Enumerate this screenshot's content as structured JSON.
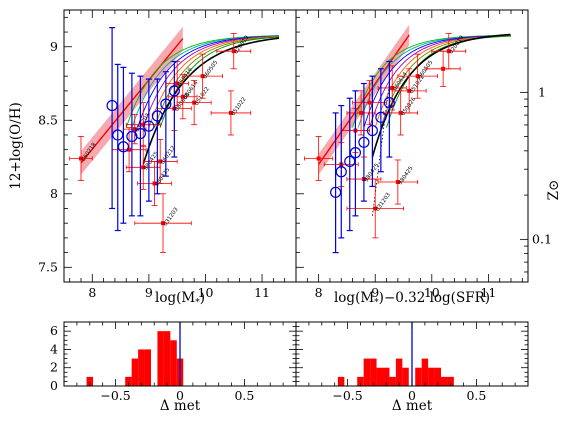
{
  "figure": {
    "colors": {
      "red": "#ff0000",
      "blue": "#0000e0",
      "band": "#f49aa0",
      "black": "#000000"
    }
  },
  "chart_data": [
    {
      "id": "metallicity-vs-mass",
      "type": "scatter",
      "xlabel": "log(M",
      "xlabel_sub": "*",
      "xlabel_tail": ")",
      "ylabel": "12+log(O/H)",
      "xlim": [
        7.5,
        11.6
      ],
      "ylim": [
        7.4,
        9.25
      ],
      "xticks": [
        "8",
        "9",
        "10",
        "11"
      ],
      "yticks": [
        "7.5",
        "8",
        "8.5",
        "9"
      ],
      "series": [
        {
          "role": "grb-hosts",
          "color": "#ff0000",
          "points": [
            {
              "x": 7.8,
              "y": 8.24,
              "xerr": 0.2,
              "yerr": 0.15,
              "label": "060218"
            },
            {
              "x": 8.75,
              "y": 8.44,
              "xerr": 0.2,
              "yerr": 0.1,
              "label": "031203"
            },
            {
              "x": 8.65,
              "y": 8.3,
              "xerr": 0.3,
              "yerr": 0.15,
              "label": ""
            },
            {
              "x": 8.9,
              "y": 8.47,
              "xerr": 0.3,
              "yerr": 0.15,
              "label": ""
            },
            {
              "x": 8.9,
              "y": 8.18,
              "xerr": 0.3,
              "yerr": 0.15,
              "label": "980425"
            },
            {
              "x": 9.2,
              "y": 8.22,
              "xerr": 0.3,
              "yerr": 0.15,
              "label": "060212"
            },
            {
              "x": 9.1,
              "y": 8.07,
              "xerr": 0.3,
              "yerr": 0.15,
              "label": "980425"
            },
            {
              "x": 9.25,
              "y": 7.8,
              "xerr": 0.5,
              "yerr": 0.2,
              "label": "031203"
            },
            {
              "x": 9.45,
              "y": 8.58,
              "xerr": 0.3,
              "yerr": 0.15,
              "label": "080608"
            },
            {
              "x": 9.5,
              "y": 8.75,
              "xerr": 0.2,
              "yerr": 0.15,
              "label": "050416"
            },
            {
              "x": 9.8,
              "y": 8.62,
              "xerr": 0.3,
              "yerr": 0.15,
              "label": "051022"
            },
            {
              "x": 9.95,
              "y": 8.8,
              "xerr": 0.35,
              "yerr": 0.15,
              "label": "060505"
            },
            {
              "x": 10.45,
              "y": 8.55,
              "xerr": 0.35,
              "yerr": 0.15,
              "label": "051022"
            },
            {
              "x": 10.5,
              "y": 8.97,
              "xerr": 0.3,
              "yerr": 0.12,
              "label": "020819"
            },
            {
              "x": 9.6,
              "y": 8.66,
              "xerr": 0.25,
              "yerr": 0.15,
              "label": "060614"
            }
          ]
        },
        {
          "role": "binned-medians",
          "color": "#0000e0",
          "points": [
            {
              "x": 8.35,
              "y": 8.6,
              "ylo": 7.9,
              "yhi": 9.13
            },
            {
              "x": 8.45,
              "y": 8.4,
              "ylo": 7.75,
              "yhi": 8.88
            },
            {
              "x": 8.55,
              "y": 8.32,
              "ylo": 7.8,
              "yhi": 8.86
            },
            {
              "x": 8.7,
              "y": 8.39,
              "ylo": 7.85,
              "yhi": 8.82
            },
            {
              "x": 8.85,
              "y": 8.41,
              "ylo": 7.85,
              "yhi": 8.8
            },
            {
              "x": 9.0,
              "y": 8.46,
              "ylo": 7.95,
              "yhi": 8.78
            },
            {
              "x": 9.15,
              "y": 8.53,
              "ylo": 8.0,
              "yhi": 8.78
            },
            {
              "x": 9.3,
              "y": 8.61,
              "ylo": 8.12,
              "yhi": 8.83
            },
            {
              "x": 9.45,
              "y": 8.7,
              "ylo": 8.25,
              "yhi": 8.9
            }
          ]
        }
      ]
    },
    {
      "id": "metallicity-vs-mass-sfr",
      "type": "scatter",
      "xlabel": "log(M",
      "xlabel_sub": "*",
      "xlabel_tail": ")−0.32 log(SFR)",
      "ylabel_right": "Z⊙",
      "xlim": [
        7.6,
        11.7
      ],
      "ylim": [
        7.4,
        9.25
      ],
      "xticks": [
        "8",
        "9",
        "10",
        "11"
      ],
      "right_ticks": [
        "1",
        "0.1"
      ],
      "series": [
        {
          "role": "grb-hosts",
          "color": "#ff0000",
          "points": [
            {
              "x": 8.0,
              "y": 8.24,
              "xerr": 0.25,
              "yerr": 0.15,
              "label": ""
            },
            {
              "x": 8.4,
              "y": 8.2,
              "xerr": 0.3,
              "yerr": 0.15,
              "label": ""
            },
            {
              "x": 8.65,
              "y": 8.43,
              "xerr": 0.25,
              "yerr": 0.15,
              "label": ""
            },
            {
              "x": 8.75,
              "y": 8.55,
              "xerr": 0.25,
              "yerr": 0.15,
              "label": ""
            },
            {
              "x": 8.9,
              "y": 8.62,
              "xerr": 0.3,
              "yerr": 0.15,
              "label": ""
            },
            {
              "x": 8.8,
              "y": 8.1,
              "xerr": 0.3,
              "yerr": 0.15,
              "label": "980425"
            },
            {
              "x": 9.0,
              "y": 7.9,
              "xerr": 0.5,
              "yerr": 0.2,
              "label": "031203"
            },
            {
              "x": 9.3,
              "y": 8.72,
              "xerr": 0.25,
              "yerr": 0.15,
              "label": "060614"
            },
            {
              "x": 9.45,
              "y": 8.55,
              "xerr": 0.3,
              "yerr": 0.15,
              "label": "050826"
            },
            {
              "x": 9.6,
              "y": 8.7,
              "xerr": 0.3,
              "yerr": 0.15,
              "label": "051022"
            },
            {
              "x": 9.75,
              "y": 8.8,
              "xerr": 0.35,
              "yerr": 0.15,
              "label": "060505"
            },
            {
              "x": 9.4,
              "y": 8.08,
              "xerr": 0.35,
              "yerr": 0.15,
              "label": "980425"
            },
            {
              "x": 10.3,
              "y": 8.97,
              "xerr": 0.3,
              "yerr": 0.12,
              "label": "020819"
            },
            {
              "x": 10.2,
              "y": 8.85,
              "xerr": 0.3,
              "yerr": 0.12,
              "label": ""
            }
          ]
        },
        {
          "role": "binned-medians",
          "color": "#0000e0",
          "points": [
            {
              "x": 8.3,
              "y": 8.01,
              "ylo": 7.6,
              "yhi": 8.55
            },
            {
              "x": 8.4,
              "y": 8.15,
              "ylo": 7.7,
              "yhi": 8.6
            },
            {
              "x": 8.55,
              "y": 8.22,
              "ylo": 7.75,
              "yhi": 8.65
            },
            {
              "x": 8.65,
              "y": 8.28,
              "ylo": 7.85,
              "yhi": 8.7
            },
            {
              "x": 8.8,
              "y": 8.35,
              "ylo": 7.95,
              "yhi": 8.75
            },
            {
              "x": 8.95,
              "y": 8.43,
              "ylo": 8.05,
              "yhi": 8.8
            },
            {
              "x": 9.1,
              "y": 8.52,
              "ylo": 8.15,
              "yhi": 8.85
            },
            {
              "x": 9.25,
              "y": 8.62,
              "ylo": 8.25,
              "yhi": 8.9
            }
          ]
        }
      ]
    },
    {
      "id": "delta-met-hist-left",
      "type": "bar",
      "xlabel": "Δ met",
      "xlim": [
        -0.9,
        0.9
      ],
      "ylim": [
        0,
        7
      ],
      "xticks": [
        "−0.5",
        "0",
        "0.5"
      ],
      "yticks": [
        "0",
        "2",
        "4",
        "6"
      ],
      "bin_width": 0.05,
      "bins": [
        {
          "x": -0.7,
          "count": 1
        },
        {
          "x": -0.4,
          "count": 1
        },
        {
          "x": -0.35,
          "count": 3
        },
        {
          "x": -0.3,
          "count": 4
        },
        {
          "x": -0.25,
          "count": 4
        },
        {
          "x": -0.15,
          "count": 6
        },
        {
          "x": -0.1,
          "count": 6
        },
        {
          "x": -0.05,
          "count": 5
        },
        {
          "x": 0.0,
          "count": 3
        }
      ],
      "marker_x": 0
    },
    {
      "id": "delta-met-hist-right",
      "type": "bar",
      "xlabel": "Δ met",
      "xlim": [
        -0.9,
        0.9
      ],
      "ylim": [
        0,
        7
      ],
      "xticks": [
        "−0.5",
        "0",
        "0.5"
      ],
      "bin_width": 0.05,
      "bins": [
        {
          "x": -0.55,
          "count": 1
        },
        {
          "x": -0.4,
          "count": 1
        },
        {
          "x": -0.35,
          "count": 3
        },
        {
          "x": -0.3,
          "count": 3
        },
        {
          "x": -0.25,
          "count": 2
        },
        {
          "x": -0.2,
          "count": 2
        },
        {
          "x": -0.15,
          "count": 1
        },
        {
          "x": -0.1,
          "count": 3
        },
        {
          "x": -0.05,
          "count": 2
        },
        {
          "x": 0.05,
          "count": 2
        },
        {
          "x": 0.1,
          "count": 3
        },
        {
          "x": 0.15,
          "count": 2
        },
        {
          "x": 0.2,
          "count": 2
        },
        {
          "x": 0.25,
          "count": 1
        },
        {
          "x": 0.3,
          "count": 1
        }
      ],
      "marker_x": 0
    }
  ]
}
